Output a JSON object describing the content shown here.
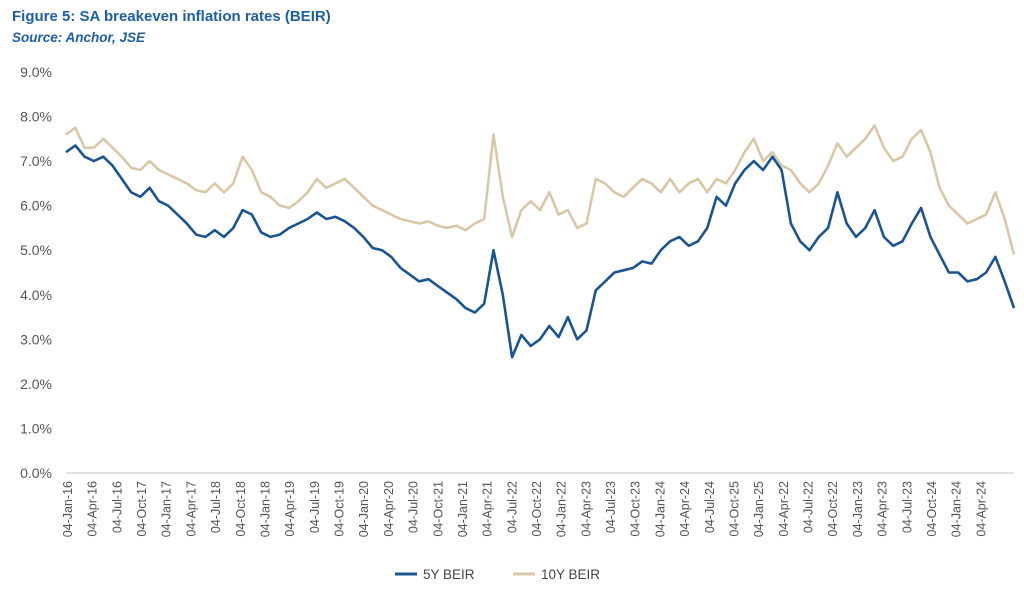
{
  "chart_data": {
    "type": "line",
    "title": "Figure 5: SA breakeven inflation rates (BEIR)",
    "subtitle": "Source: Anchor, JSE",
    "yticks": [
      "0.0%",
      "1.0%",
      "2.0%",
      "3.0%",
      "4.0%",
      "5.0%",
      "6.0%",
      "7.0%",
      "8.0%",
      "9.0%"
    ],
    "ylim": [
      0,
      9
    ],
    "xlim": [
      0,
      100
    ],
    "grid": false,
    "legend_position": "bottom",
    "xticks": [
      "04-Jan-16",
      "04-Apr-16",
      "04-Jul-16",
      "04-Oct-17",
      "04-Jan-17",
      "04-Apr-17",
      "04-Jul-18",
      "04-Oct-18",
      "04-Jan-18",
      "04-Apr-19",
      "04-Jul-19",
      "04-Oct-19",
      "04-Jan-20",
      "04-Apr-20",
      "04-Jul-20",
      "04-Oct-21",
      "04-Jan-21",
      "04-Apr-21",
      "04-Jul-22",
      "04-Oct-22",
      "04-Jan-22",
      "04-Apr-23",
      "04-Jul-23",
      "04-Oct-23",
      "04-Jan-24",
      "04-Apr-24",
      "04-Jul-24",
      "04-Oct-25",
      "04-Jan-25",
      "04-Apr-22",
      "04-Jul-22",
      "04-Oct-22",
      "04-Jan-23",
      "04-Apr-23",
      "04-Jul-23",
      "04-Oct-24",
      "04-Jan-24",
      "04-Apr-24"
    ],
    "series": [
      {
        "name": "5Y BEIR",
        "color": "#1a5592",
        "points": [
          [
            0,
            7.2
          ],
          [
            1,
            7.35
          ],
          [
            2,
            7.1
          ],
          [
            3,
            7.0
          ],
          [
            4,
            7.1
          ],
          [
            5,
            6.9
          ],
          [
            6,
            6.6
          ],
          [
            7,
            6.3
          ],
          [
            8,
            6.2
          ],
          [
            9,
            6.4
          ],
          [
            10,
            6.1
          ],
          [
            11,
            6.0
          ],
          [
            12,
            5.8
          ],
          [
            13,
            5.6
          ],
          [
            14,
            5.35
          ],
          [
            15,
            5.3
          ],
          [
            16,
            5.45
          ],
          [
            17,
            5.3
          ],
          [
            18,
            5.5
          ],
          [
            19,
            5.9
          ],
          [
            20,
            5.8
          ],
          [
            21,
            5.4
          ],
          [
            22,
            5.3
          ],
          [
            23,
            5.35
          ],
          [
            24,
            5.5
          ],
          [
            25,
            5.6
          ],
          [
            26,
            5.7
          ],
          [
            27,
            5.85
          ],
          [
            28,
            5.7
          ],
          [
            29,
            5.75
          ],
          [
            30,
            5.65
          ],
          [
            31,
            5.5
          ],
          [
            32,
            5.3
          ],
          [
            33,
            5.05
          ],
          [
            34,
            5.0
          ],
          [
            35,
            4.85
          ],
          [
            36,
            4.6
          ],
          [
            37,
            4.45
          ],
          [
            38,
            4.3
          ],
          [
            39,
            4.35
          ],
          [
            40,
            4.2
          ],
          [
            41,
            4.05
          ],
          [
            42,
            3.9
          ],
          [
            43,
            3.7
          ],
          [
            44,
            3.6
          ],
          [
            45,
            3.8
          ],
          [
            46,
            5.0
          ],
          [
            47,
            4.0
          ],
          [
            48,
            2.6
          ],
          [
            49,
            3.1
          ],
          [
            50,
            2.85
          ],
          [
            51,
            3.0
          ],
          [
            52,
            3.3
          ],
          [
            53,
            3.05
          ],
          [
            54,
            3.5
          ],
          [
            55,
            3.0
          ],
          [
            56,
            3.2
          ],
          [
            57,
            4.1
          ],
          [
            58,
            4.3
          ],
          [
            59,
            4.5
          ],
          [
            60,
            4.55
          ],
          [
            61,
            4.6
          ],
          [
            62,
            4.75
          ],
          [
            63,
            4.7
          ],
          [
            64,
            5.0
          ],
          [
            65,
            5.2
          ],
          [
            66,
            5.3
          ],
          [
            67,
            5.1
          ],
          [
            68,
            5.2
          ],
          [
            69,
            5.5
          ],
          [
            70,
            6.2
          ],
          [
            71,
            6.0
          ],
          [
            72,
            6.5
          ],
          [
            73,
            6.8
          ],
          [
            74,
            7.0
          ],
          [
            75,
            6.8
          ],
          [
            76,
            7.1
          ],
          [
            77,
            6.8
          ],
          [
            78,
            5.6
          ],
          [
            79,
            5.2
          ],
          [
            80,
            5.0
          ],
          [
            81,
            5.3
          ],
          [
            82,
            5.5
          ],
          [
            83,
            6.3
          ],
          [
            84,
            5.6
          ],
          [
            85,
            5.3
          ],
          [
            86,
            5.5
          ],
          [
            87,
            5.9
          ],
          [
            88,
            5.3
          ],
          [
            89,
            5.1
          ],
          [
            90,
            5.2
          ],
          [
            91,
            5.6
          ],
          [
            92,
            5.95
          ],
          [
            93,
            5.3
          ],
          [
            94,
            4.9
          ],
          [
            95,
            4.5
          ],
          [
            96,
            4.5
          ],
          [
            97,
            4.3
          ],
          [
            98,
            4.35
          ],
          [
            99,
            4.5
          ],
          [
            100,
            4.85
          ],
          [
            101,
            4.3
          ],
          [
            102,
            3.7
          ]
        ]
      },
      {
        "name": "10Y BEIR",
        "color": "#d9c8a8",
        "points": [
          [
            0,
            7.6
          ],
          [
            1,
            7.75
          ],
          [
            2,
            7.3
          ],
          [
            3,
            7.3
          ],
          [
            4,
            7.5
          ],
          [
            5,
            7.3
          ],
          [
            6,
            7.1
          ],
          [
            7,
            6.85
          ],
          [
            8,
            6.8
          ],
          [
            9,
            7.0
          ],
          [
            10,
            6.8
          ],
          [
            11,
            6.7
          ],
          [
            12,
            6.6
          ],
          [
            13,
            6.5
          ],
          [
            14,
            6.35
          ],
          [
            15,
            6.3
          ],
          [
            16,
            6.5
          ],
          [
            17,
            6.3
          ],
          [
            18,
            6.5
          ],
          [
            19,
            7.1
          ],
          [
            20,
            6.8
          ],
          [
            21,
            6.3
          ],
          [
            22,
            6.2
          ],
          [
            23,
            6.0
          ],
          [
            24,
            5.95
          ],
          [
            25,
            6.1
          ],
          [
            26,
            6.3
          ],
          [
            27,
            6.6
          ],
          [
            28,
            6.4
          ],
          [
            29,
            6.5
          ],
          [
            30,
            6.6
          ],
          [
            31,
            6.4
          ],
          [
            32,
            6.2
          ],
          [
            33,
            6.0
          ],
          [
            34,
            5.9
          ],
          [
            35,
            5.8
          ],
          [
            36,
            5.7
          ],
          [
            37,
            5.65
          ],
          [
            38,
            5.6
          ],
          [
            39,
            5.65
          ],
          [
            40,
            5.55
          ],
          [
            41,
            5.5
          ],
          [
            42,
            5.55
          ],
          [
            43,
            5.45
          ],
          [
            44,
            5.6
          ],
          [
            45,
            5.7
          ],
          [
            46,
            7.6
          ],
          [
            47,
            6.2
          ],
          [
            48,
            5.3
          ],
          [
            49,
            5.9
          ],
          [
            50,
            6.1
          ],
          [
            51,
            5.9
          ],
          [
            52,
            6.3
          ],
          [
            53,
            5.8
          ],
          [
            54,
            5.9
          ],
          [
            55,
            5.5
          ],
          [
            56,
            5.6
          ],
          [
            57,
            6.6
          ],
          [
            58,
            6.5
          ],
          [
            59,
            6.3
          ],
          [
            60,
            6.2
          ],
          [
            61,
            6.4
          ],
          [
            62,
            6.6
          ],
          [
            63,
            6.5
          ],
          [
            64,
            6.3
          ],
          [
            65,
            6.6
          ],
          [
            66,
            6.3
          ],
          [
            67,
            6.5
          ],
          [
            68,
            6.6
          ],
          [
            69,
            6.3
          ],
          [
            70,
            6.6
          ],
          [
            71,
            6.5
          ],
          [
            72,
            6.8
          ],
          [
            73,
            7.2
          ],
          [
            74,
            7.5
          ],
          [
            75,
            7.0
          ],
          [
            76,
            7.2
          ],
          [
            77,
            6.9
          ],
          [
            78,
            6.8
          ],
          [
            79,
            6.5
          ],
          [
            80,
            6.3
          ],
          [
            81,
            6.5
          ],
          [
            82,
            6.9
          ],
          [
            83,
            7.4
          ],
          [
            84,
            7.1
          ],
          [
            85,
            7.3
          ],
          [
            86,
            7.5
          ],
          [
            87,
            7.8
          ],
          [
            88,
            7.3
          ],
          [
            89,
            7.0
          ],
          [
            90,
            7.1
          ],
          [
            91,
            7.5
          ],
          [
            92,
            7.7
          ],
          [
            93,
            7.2
          ],
          [
            94,
            6.4
          ],
          [
            95,
            6.0
          ],
          [
            96,
            5.8
          ],
          [
            97,
            5.6
          ],
          [
            98,
            5.7
          ],
          [
            99,
            5.8
          ],
          [
            100,
            6.3
          ],
          [
            101,
            5.7
          ],
          [
            102,
            4.9
          ]
        ]
      }
    ]
  }
}
